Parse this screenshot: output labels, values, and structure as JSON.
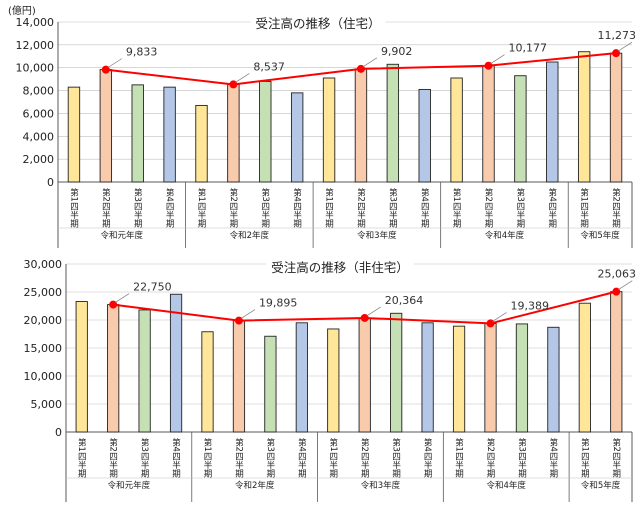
{
  "chart_data": [
    {
      "type": "bar",
      "title": "受注高の推移（住宅）",
      "unit_label": "(億円)",
      "ylim": [
        0,
        14000
      ],
      "yticks": [
        "0",
        "2,000",
        "4,000",
        "6,000",
        "8,000",
        "10,000",
        "12,000",
        "14,000"
      ],
      "groups": [
        {
          "label": "令和元年度",
          "quarters": [
            "第1四半期",
            "第2四半期",
            "第3四半期",
            "第4四半期"
          ]
        },
        {
          "label": "令和2年度",
          "quarters": [
            "第1四半期",
            "第2四半期",
            "第3四半期",
            "第4四半期"
          ]
        },
        {
          "label": "令和3年度",
          "quarters": [
            "第1四半期",
            "第2四半期",
            "第3四半期",
            "第4四半期"
          ]
        },
        {
          "label": "令和4年度",
          "quarters": [
            "第1四半期",
            "第2四半期",
            "第3四半期",
            "第4四半期"
          ]
        },
        {
          "label": "令和5年度",
          "quarters": [
            "第1四半期",
            "第2四半期"
          ]
        }
      ],
      "values": [
        8300,
        9833,
        8500,
        8300,
        6700,
        8537,
        8800,
        7800,
        9100,
        9902,
        10300,
        8100,
        9100,
        10177,
        9300,
        10500,
        11400,
        11273
      ],
      "line": {
        "points": [
          1,
          5,
          9,
          13,
          17
        ],
        "labels": [
          "9,833",
          "8,537",
          "9,902",
          "10,177",
          "11,273"
        ]
      }
    },
    {
      "type": "bar",
      "title": "受注高の推移（非住宅）",
      "unit_label": "",
      "ylim": [
        0,
        30000
      ],
      "yticks": [
        "0",
        "5,000",
        "10,000",
        "15,000",
        "20,000",
        "25,000",
        "30,000"
      ],
      "groups": [
        {
          "label": "令和元年度",
          "quarters": [
            "第1四半期",
            "第2四半期",
            "第3四半期",
            "第4四半期"
          ]
        },
        {
          "label": "令和2年度",
          "quarters": [
            "第1四半期",
            "第2四半期",
            "第3四半期",
            "第4四半期"
          ]
        },
        {
          "label": "令和3年度",
          "quarters": [
            "第1四半期",
            "第2四半期",
            "第3四半期",
            "第4四半期"
          ]
        },
        {
          "label": "令和4年度",
          "quarters": [
            "第1四半期",
            "第2四半期",
            "第3四半期",
            "第4四半期"
          ]
        },
        {
          "label": "令和5年度",
          "quarters": [
            "第1四半期",
            "第2四半期"
          ]
        }
      ],
      "values": [
        23300,
        22750,
        21800,
        24600,
        17900,
        19895,
        17100,
        19500,
        18400,
        20364,
        21200,
        19500,
        18900,
        19389,
        19300,
        18700,
        23000,
        25063
      ],
      "line": {
        "points": [
          1,
          5,
          9,
          13,
          17
        ],
        "labels": [
          "22,750",
          "19,895",
          "20,364",
          "19,389",
          "25,063"
        ]
      }
    }
  ],
  "colors": {
    "q1": "#ffe699",
    "q2": "#f8cbad",
    "q3": "#c5e0b4",
    "q4": "#b4c7e7",
    "bar_edge": "#222222",
    "line": "#ff0000",
    "axis": "#595959",
    "grid": "#bfbfbf"
  }
}
